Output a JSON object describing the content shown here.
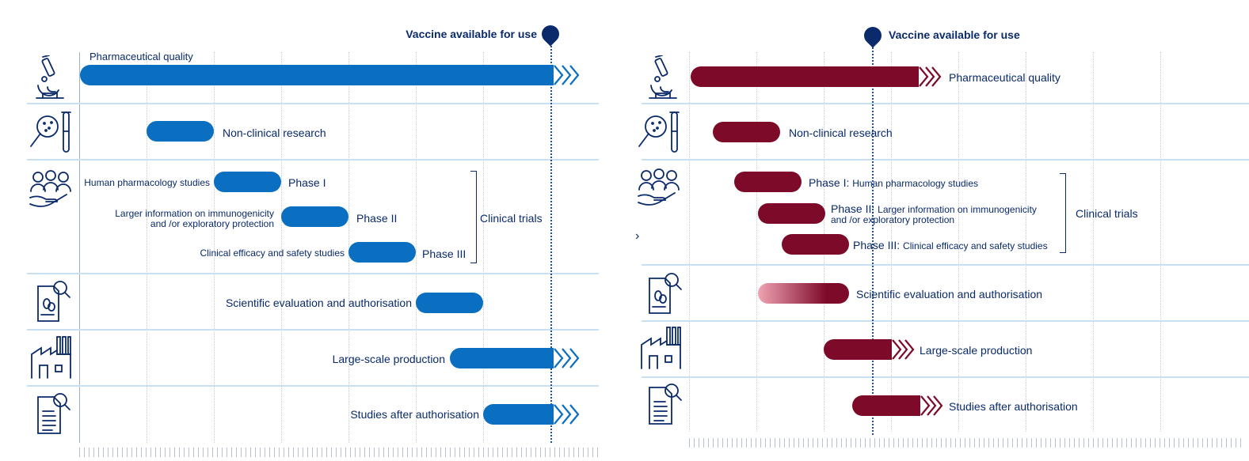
{
  "left": {
    "vaccine_label": "Vaccine available for use",
    "pharma_label": "Pharmaceutical quality",
    "nonclinical_label": "Non-clinical research",
    "phase1_name": "Phase I",
    "phase1_desc": "Human pharmacology studies",
    "phase2_name": "Phase II",
    "phase2_desc_line1": "Larger information on immunogenicity",
    "phase2_desc_line2": "and /or exploratory protection",
    "phase3_name": "Phase III",
    "phase3_desc": "Clinical efficacy and safety studies",
    "clinical_trials": "Clinical trials",
    "evaluation_label": "Scientific evaluation and authorisation",
    "production_label": "Large-scale production",
    "post_auth_label": "Studies after authorisation"
  },
  "right": {
    "vaccine_label": "Vaccine available for use",
    "pharma_label": "Pharmaceutical quality",
    "nonclinical_label": "Non-clinical research",
    "phase1_name": "Phase I:",
    "phase1_desc": "Human pharmacology studies",
    "phase2_name": "Phase II:",
    "phase2_desc_line1": "Larger information on immunogenicity",
    "phase2_desc_line2": "and /or exploratory protection",
    "phase3_name": "Phase III:",
    "phase3_desc": "Clinical efficacy and safety studies",
    "clinical_trials": "Clinical trials",
    "evaluation_label": "Scientific evaluation and authorisation",
    "production_label": "Large-scale production",
    "post_auth_label": "Studies after authorisation"
  },
  "icons": [
    "microscope-icon",
    "magnifier-test-tube-icon",
    "people-hand-icon",
    "document-search-icon",
    "factory-icon",
    "report-search-icon"
  ],
  "colors": {
    "left_bar": "#0b6fc1",
    "right_bar": "#7e0a2a",
    "text": "#0a2a6b"
  }
}
